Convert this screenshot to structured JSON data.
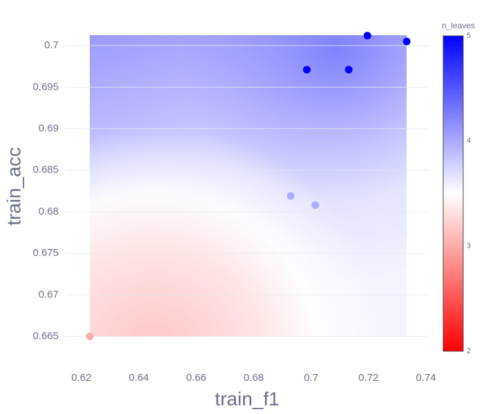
{
  "chart_data": {
    "type": "scatter",
    "x_label": "train_f1",
    "y_label": "train_acc",
    "x": [
      0.6229,
      0.6929,
      0.7015,
      0.6985,
      0.7131,
      0.7196,
      0.7333
    ],
    "series": [
      {
        "name": "n_leaves",
        "values": [
          0.665,
          0.6819,
          0.6808,
          0.6971,
          0.6971,
          0.7012,
          0.7005
        ],
        "color_values": [
          3,
          4,
          4,
          5,
          5,
          5,
          5
        ]
      }
    ],
    "colorscale": [
      "#ff0000",
      "#ffffff",
      "#0000ff"
    ],
    "clim": [
      2,
      5
    ],
    "cticks": [
      2,
      3,
      4,
      5
    ],
    "xlim": [
      0.6145,
      0.7412
    ],
    "ylim": [
      0.6623,
      0.703
    ],
    "xticks": [
      0.62,
      0.64,
      0.66,
      0.68,
      0.7,
      0.72,
      0.74
    ],
    "yticks": [
      0.665,
      0.67,
      0.675,
      0.68,
      0.685,
      0.69,
      0.695,
      0.7
    ],
    "grid": true
  }
}
